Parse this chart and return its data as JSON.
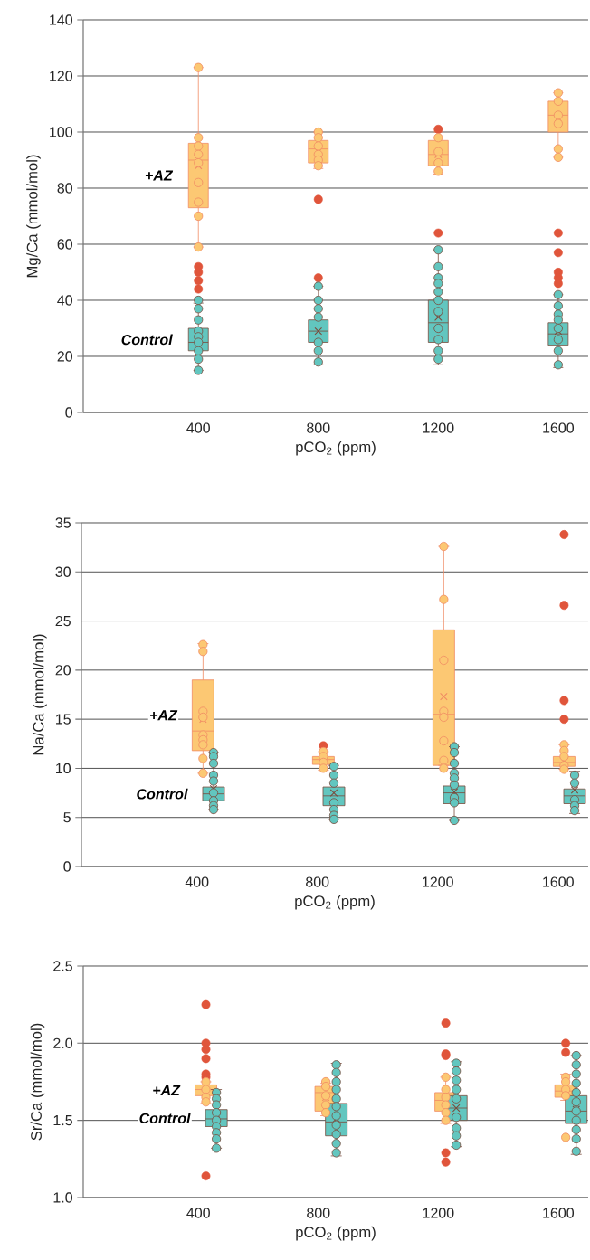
{
  "chart_data": [
    {
      "type": "box",
      "x": [
        400,
        800,
        1200,
        1600
      ],
      "xlim": [
        16,
        1700
      ],
      "xticks": [
        400,
        800,
        1200,
        1600
      ],
      "xlabel": "pCO$_{2}$ (ppm)",
      "ylabel": "Mg/Ca (mmol/mol)",
      "ylim": [
        0,
        140
      ],
      "yticks": [
        0,
        20,
        40,
        60,
        80,
        100,
        120,
        140
      ],
      "grid": "y",
      "marker": "circle",
      "series": [
        {
          "name": "+AZ",
          "color": "#fcc873",
          "boxes": [
            {
              "low": 59,
              "q1": 73,
              "median": 90,
              "q3": 96,
              "high": 123,
              "mean": 88
            },
            {
              "low": 87,
              "q1": 89,
              "median": 94,
              "q3": 97,
              "high": 100,
              "mean": 93,
              "outliers": [
                76
              ]
            },
            {
              "low": 85,
              "q1": 88,
              "median": 92,
              "q3": 97,
              "high": 100,
              "mean": 92,
              "outliers": [
                101
              ]
            },
            {
              "low": 91,
              "q1": 100,
              "median": 106,
              "q3": 111,
              "high": 114,
              "mean": 105
            }
          ]
        },
        {
          "name": "Control",
          "color": "#62c6bf",
          "boxes": [
            {
              "low": 15,
              "q1": 22,
              "median": 25,
              "q3": 30,
              "high": 39,
              "mean": 28,
              "outliers": [
                52,
                50,
                47,
                44
              ]
            },
            {
              "low": 17,
              "q1": 25,
              "median": 29,
              "q3": 33,
              "high": 45,
              "mean": 29,
              "outliers": [
                48
              ]
            },
            {
              "low": 17,
              "q1": 25,
              "median": 32,
              "q3": 40,
              "high": 58,
              "mean": 34,
              "outliers": [
                64
              ]
            },
            {
              "low": 16,
              "q1": 24,
              "median": 28,
              "q3": 32,
              "high": 42,
              "mean": 29,
              "outliers": [
                64,
                57,
                50,
                48,
                46
              ]
            }
          ]
        },
        {
          "type": "scatter",
          "color": "#fcc873",
          "x": [
            400,
            400,
            400,
            400,
            400,
            400,
            400,
            400,
            400,
            800,
            800,
            800,
            800,
            800,
            800,
            1200,
            1200,
            1200,
            1200,
            1600,
            1600,
            1600,
            1600,
            1600,
            1600
          ],
          "values": [
            123,
            98,
            95,
            92,
            89,
            82,
            75,
            70,
            59,
            100,
            98,
            95,
            92,
            90,
            88,
            98,
            93,
            89,
            86,
            114,
            111,
            106,
            103,
            94,
            91
          ]
        },
        {
          "type": "scatter",
          "color": "#62c6bf",
          "x": [
            400,
            400,
            400,
            400,
            400,
            400,
            400,
            400,
            400,
            800,
            800,
            800,
            800,
            800,
            800,
            800,
            1200,
            1200,
            1200,
            1200,
            1200,
            1200,
            1200,
            1200,
            1200,
            1200,
            1200,
            1600,
            1600,
            1600,
            1600,
            1600,
            1600,
            1600,
            1600
          ],
          "values": [
            40,
            37,
            33,
            29,
            27,
            25,
            22,
            19,
            15,
            45,
            40,
            37,
            34,
            25,
            22,
            18,
            58,
            52,
            48,
            46,
            43,
            40,
            36,
            30,
            26,
            22,
            19,
            42,
            38,
            35,
            33,
            30,
            26,
            22,
            17
          ]
        }
      ]
    },
    {
      "type": "box",
      "xlim": [
        16,
        1700
      ],
      "xticks": [
        400,
        800,
        1200,
        1600
      ],
      "xlabel": "pCO$_{2}$ (ppm)",
      "ylabel": "Na/Ca (mmol/mol)",
      "ylim": [
        0,
        35
      ],
      "yticks": [
        0,
        5,
        10,
        15,
        20,
        25,
        30,
        35
      ],
      "grid": "y",
      "marker": "circle",
      "series": [
        {
          "name": "+AZ",
          "color": "#fcc873",
          "x": [
            420,
            820,
            1220,
            1620
          ],
          "boxes": [
            {
              "low": 9.5,
              "q1": 11.8,
              "median": 13.8,
              "q3": 19.0,
              "high": 22.7,
              "mean": 15.0
            },
            {
              "low": 9.8,
              "q1": 10.4,
              "median": 10.9,
              "q3": 11.2,
              "high": 11.7,
              "mean": 11.0,
              "outliers": [
                12.3
              ]
            },
            {
              "low": 10.3,
              "q1": 10.3,
              "median": 15.5,
              "q3": 24.1,
              "high": 32.6,
              "mean": 17.3
            },
            {
              "low": 9.9,
              "q1": 10.2,
              "median": 10.6,
              "q3": 11.2,
              "high": 12.4,
              "mean": 10.7,
              "outliers": [
                33.8,
                26.6,
                16.9,
                15.0
              ]
            }
          ]
        },
        {
          "name": "Control",
          "color": "#62c6bf",
          "x": [
            455,
            855,
            1255,
            1655
          ],
          "boxes": [
            {
              "low": 5.8,
              "q1": 6.7,
              "median": 7.4,
              "q3": 8.1,
              "high": 11.6,
              "mean": 7.9
            },
            {
              "low": 4.8,
              "q1": 6.2,
              "median": 7.2,
              "q3": 8.1,
              "high": 10.3,
              "mean": 7.5
            },
            {
              "low": 4.7,
              "q1": 6.4,
              "median": 7.5,
              "q3": 8.2,
              "high": 12.2,
              "mean": 7.6
            },
            {
              "low": 5.4,
              "q1": 6.4,
              "median": 7.2,
              "q3": 7.9,
              "high": 9.7,
              "mean": 7.8
            }
          ]
        },
        {
          "type": "scatter",
          "color": "#fcc873",
          "x": [
            420,
            420,
            420,
            420,
            420,
            420,
            420,
            420,
            420,
            820,
            820,
            820,
            820,
            1220,
            1220,
            1220,
            1220,
            1220,
            1220,
            1220,
            1220,
            1620,
            1620,
            1620,
            1620,
            1620
          ],
          "values": [
            22.6,
            21.9,
            15.8,
            15.2,
            13.4,
            12.9,
            12.4,
            11.0,
            9.5,
            11.7,
            11.2,
            10.6,
            10.0,
            32.6,
            27.2,
            21.0,
            15.8,
            15.2,
            12.8,
            10.8,
            10.0,
            12.4,
            11.8,
            11.2,
            10.3,
            9.9
          ]
        },
        {
          "type": "scatter",
          "color": "#62c6bf",
          "x": [
            455,
            455,
            455,
            455,
            455,
            455,
            455,
            455,
            455,
            855,
            855,
            855,
            855,
            855,
            855,
            855,
            1255,
            1255,
            1255,
            1255,
            1255,
            1255,
            1255,
            1255,
            1255,
            1655,
            1655,
            1655,
            1655,
            1655
          ],
          "values": [
            11.6,
            11.2,
            10.5,
            9.3,
            8.7,
            7.5,
            6.7,
            6.2,
            5.8,
            10.2,
            9.3,
            8.5,
            6.5,
            5.8,
            5.2,
            4.8,
            12.2,
            11.6,
            10.5,
            9.5,
            9.0,
            8.3,
            7.0,
            6.5,
            4.7,
            9.3,
            8.5,
            6.8,
            6.2,
            5.7
          ]
        }
      ]
    },
    {
      "type": "box",
      "xlim": [
        16,
        1700
      ],
      "xticks": [
        400,
        800,
        1200,
        1600
      ],
      "xlabel": "pCO$_{2}$ (ppm)",
      "ylabel": "Sr/Ca (mmol/mol)",
      "ylim": [
        1.0,
        2.5
      ],
      "yticks": [
        {
          "value": 1.0,
          "label": "1.0"
        },
        1.5,
        {
          "value": 2.0,
          "label": "2.0"
        },
        2.5
      ],
      "grid": "y",
      "marker": "circle",
      "series": [
        {
          "name": "+AZ",
          "color": "#fcc873",
          "x": [
            425,
            825,
            1225,
            1625
          ],
          "boxes": [
            {
              "low": 1.61,
              "q1": 1.66,
              "median": 1.7,
              "q3": 1.73,
              "high": 1.75,
              "mean": 1.68,
              "outliers": [
                2.25,
                2.0,
                1.96,
                1.9,
                1.8,
                1.78,
                1.14
              ]
            },
            {
              "low": 1.53,
              "q1": 1.56,
              "median": 1.68,
              "q3": 1.72,
              "high": 1.74,
              "mean": 1.65
            },
            {
              "low": 1.48,
              "q1": 1.56,
              "median": 1.63,
              "q3": 1.68,
              "high": 1.78,
              "mean": 1.64,
              "outliers": [
                2.13,
                1.93,
                1.92,
                1.29,
                1.23
              ]
            },
            {
              "low": 1.63,
              "q1": 1.65,
              "median": 1.69,
              "q3": 1.73,
              "high": 1.8,
              "mean": 1.67,
              "outliers": [
                2.0,
                1.94
              ]
            }
          ]
        },
        {
          "name": "Control",
          "color": "#62c6bf",
          "x": [
            460,
            860,
            1260,
            1660
          ],
          "boxes": [
            {
              "low": 1.32,
              "q1": 1.46,
              "median": 1.51,
              "q3": 1.57,
              "high": 1.7,
              "mean": 1.54
            },
            {
              "low": 1.27,
              "q1": 1.4,
              "median": 1.49,
              "q3": 1.61,
              "high": 1.87,
              "mean": 1.51
            },
            {
              "low": 1.33,
              "q1": 1.5,
              "median": 1.58,
              "q3": 1.66,
              "high": 1.88,
              "mean": 1.58
            },
            {
              "low": 1.28,
              "q1": 1.48,
              "median": 1.56,
              "q3": 1.66,
              "high": 1.92,
              "mean": 1.57
            }
          ]
        },
        {
          "type": "scatter",
          "color": "#fcc873",
          "x": [
            425,
            425,
            425,
            425,
            825,
            825,
            825,
            825,
            825,
            1225,
            1225,
            1225,
            1225,
            1225,
            1225,
            1625,
            1625,
            1625,
            1625,
            1625
          ],
          "values": [
            1.75,
            1.7,
            1.65,
            1.62,
            1.75,
            1.72,
            1.66,
            1.6,
            1.55,
            1.78,
            1.7,
            1.65,
            1.6,
            1.55,
            1.5,
            1.78,
            1.75,
            1.7,
            1.66,
            1.39
          ]
        },
        {
          "type": "scatter",
          "color": "#62c6bf",
          "x": [
            460,
            460,
            460,
            460,
            460,
            460,
            460,
            460,
            460,
            860,
            860,
            860,
            860,
            860,
            860,
            860,
            860,
            860,
            860,
            860,
            1260,
            1260,
            1260,
            1260,
            1260,
            1260,
            1260,
            1260,
            1260,
            1660,
            1660,
            1660,
            1660,
            1660,
            1660,
            1660,
            1660,
            1660,
            1660,
            1660
          ],
          "values": [
            1.68,
            1.64,
            1.6,
            1.55,
            1.5,
            1.46,
            1.42,
            1.38,
            1.32,
            1.86,
            1.81,
            1.75,
            1.7,
            1.64,
            1.59,
            1.53,
            1.47,
            1.41,
            1.35,
            1.29,
            1.87,
            1.82,
            1.76,
            1.7,
            1.64,
            1.52,
            1.45,
            1.4,
            1.34,
            1.92,
            1.86,
            1.8,
            1.74,
            1.68,
            1.62,
            1.56,
            1.5,
            1.44,
            1.38,
            1.3
          ]
        }
      ]
    }
  ]
}
